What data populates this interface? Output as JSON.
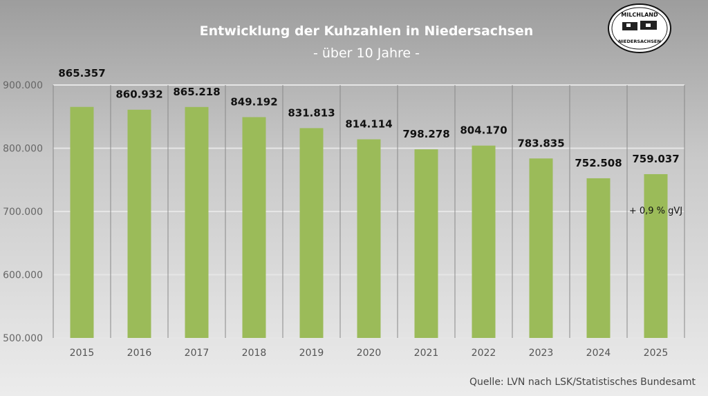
{
  "chart_data": {
    "type": "bar",
    "title": "Entwicklung der Kuhzahlen in Niedersachsen",
    "subtitle": "- über 10 Jahre -",
    "categories": [
      "2015",
      "2016",
      "2017",
      "2018",
      "2019",
      "2020",
      "2021",
      "2022",
      "2023",
      "2024",
      "2025"
    ],
    "values": [
      865357,
      860932,
      865218,
      849192,
      831813,
      814114,
      798278,
      804170,
      783835,
      752508,
      759037
    ],
    "data_labels": [
      "865.357",
      "860.932",
      "865.218",
      "849.192",
      "831.813",
      "814.114",
      "798.278",
      "804.170",
      "783.835",
      "752.508",
      "759.037"
    ],
    "ylim": [
      500000,
      900000
    ],
    "yticks": [
      "500.000",
      "600.000",
      "700.000",
      "800.000",
      "900.000"
    ],
    "grid": true,
    "bar_color": "#9bbb59",
    "annotation": "+ 0,9 % gVJ",
    "source": "Quelle:  LVN nach LSK/Statistisches Bundesamt"
  },
  "logo": {
    "top": "MILCHLAND",
    "bottom": "NIEDERSACHSEN"
  }
}
